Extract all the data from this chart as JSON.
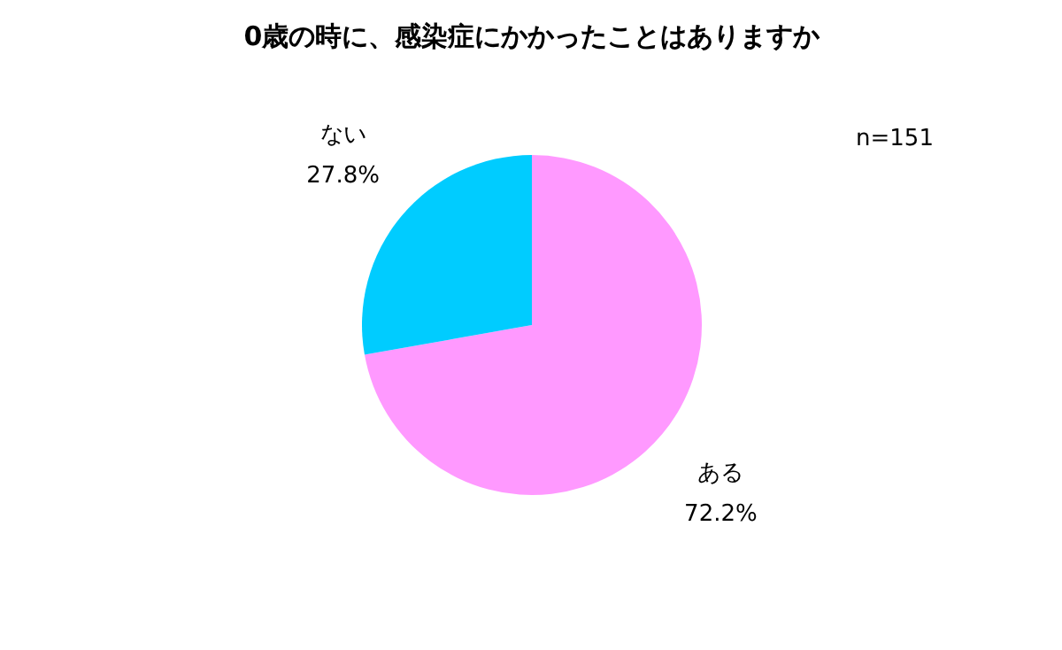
{
  "chart_data": {
    "type": "pie",
    "title": "0歳の時に、感染症にかかったことはありますか",
    "categories": [
      "ある",
      "ない"
    ],
    "values": [
      72.2,
      27.8
    ],
    "value_labels": [
      "72.2%",
      "27.8%"
    ],
    "colors": [
      "#ff99ff",
      "#00ccff"
    ],
    "annotations": [
      "n=151"
    ]
  }
}
